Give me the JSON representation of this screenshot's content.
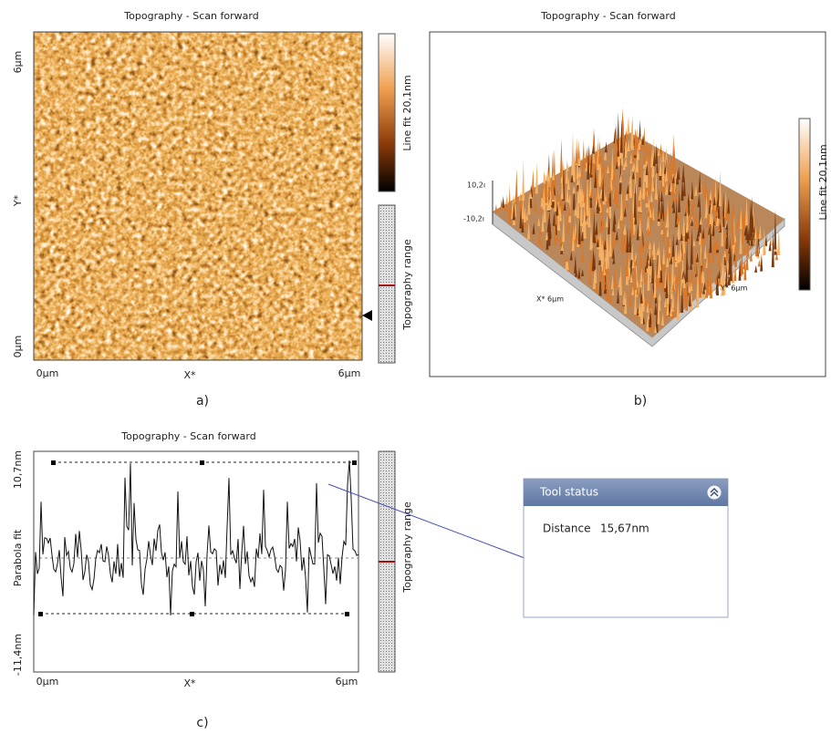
{
  "panels": [
    {
      "label": "a)",
      "title": "Topography - Scan forward",
      "axes": {
        "y_top": "6µm",
        "y_label": "Y*",
        "y_bottom": "0µm",
        "x_left": "0µm",
        "x_label": "X*",
        "x_right": "6µm"
      },
      "colorbar": "Line fit 20,1nm",
      "range_bar": "Topography range"
    },
    {
      "label": "b)",
      "title": "Topography - Scan forward",
      "z_top": "10,2ı",
      "z_bottom": "-10,2ı",
      "x_axis": "X* 6µm",
      "y_axis": "Y* 6µm",
      "colorbar": "Line fit 20,1nm"
    },
    {
      "label": "c)",
      "title": "Topography - Scan forward",
      "axes": {
        "y_top": "10,7nm",
        "y_label": "Parabola fit",
        "y_bottom": "-11,4nm",
        "x_left": "0µm",
        "x_label": "X*",
        "x_right": "6µm"
      },
      "range_bar": "Topography range"
    }
  ],
  "tool_status": {
    "title": "Tool status",
    "distance_label": "Distance",
    "distance_value": "15,67nm"
  }
}
